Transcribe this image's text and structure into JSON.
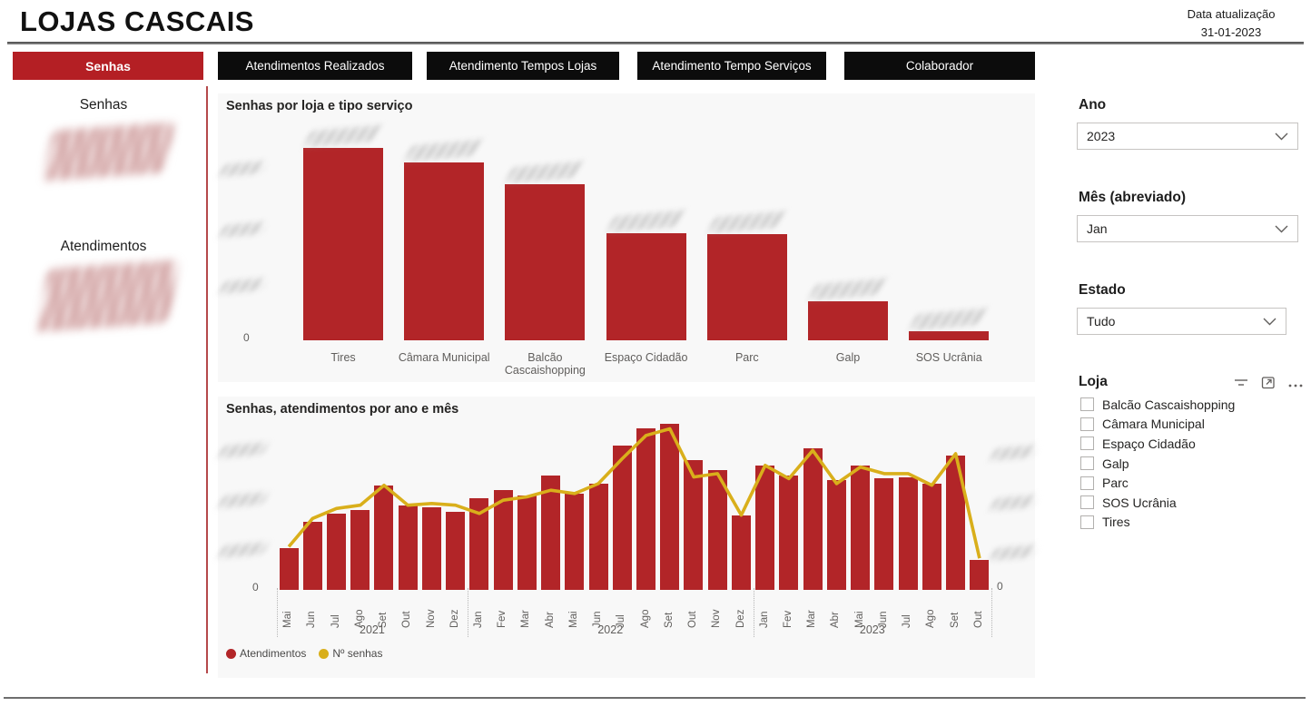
{
  "header": {
    "title": "LOJAS CASCAIS",
    "update_label": "Data atualização",
    "update_date": "31-01-2023"
  },
  "tabs": [
    {
      "label": "Senhas",
      "active": true
    },
    {
      "label": "Atendimentos Realizados",
      "active": false
    },
    {
      "label": "Atendimento Tempos Lojas",
      "active": false
    },
    {
      "label": "Atendimento Tempo Serviços",
      "active": false
    },
    {
      "label": "Colaborador",
      "active": false
    }
  ],
  "sidebar": {
    "kpis": [
      {
        "label": "Senhas",
        "value_blurred": true
      },
      {
        "label": "Atendimentos",
        "value_blurred": true
      }
    ]
  },
  "colors": {
    "bar_red": "#b22528",
    "line_gold": "#d9af1b",
    "tab_red": "#b41f24",
    "tab_black": "#0c0c0c",
    "axis_text": "#605e5c"
  },
  "chart_data": [
    {
      "type": "bar",
      "title": "Senhas por loja e tipo serviço",
      "categories": [
        "Tires",
        "Câmara Municipal",
        "Balcão Cascaishopping",
        "Espaço Cidadão",
        "Parc",
        "Galp",
        "SOS Ucrânia"
      ],
      "values_pct_of_max": [
        100,
        92.5,
        81,
        55.5,
        55,
        20.5,
        4.5
      ],
      "y_zero": "0",
      "y_tick_labels_blurred": true,
      "data_labels_blurred": true,
      "bar_color": "#b22528"
    },
    {
      "type": "bar+line",
      "title": "Senhas, atendimentos por ano e mês",
      "x_months": [
        "Mai",
        "Jun",
        "Jul",
        "Ago",
        "Set",
        "Out",
        "Nov",
        "Dez",
        "Jan",
        "Fev",
        "Mar",
        "Abr",
        "Mai",
        "Jun",
        "Jul",
        "Ago",
        "Set",
        "Out",
        "Nov",
        "Dez",
        "Jan",
        "Fev",
        "Mar",
        "Abr",
        "Mai",
        "Jun",
        "Jul",
        "Ago",
        "Set",
        "Out"
      ],
      "year_groups": [
        {
          "label": "2021",
          "months": 8
        },
        {
          "label": "2022",
          "months": 12
        },
        {
          "label": "2023",
          "months": 10
        }
      ],
      "series": [
        {
          "name": "Atendimentos",
          "type": "bar",
          "color": "#b22528",
          "values_pct_of_max": [
            25,
            41,
            46,
            48,
            63,
            51,
            50,
            47,
            55,
            60,
            57,
            69,
            58,
            64,
            87,
            97,
            100,
            78,
            72,
            45,
            75,
            69,
            85,
            66,
            75,
            67,
            68,
            64,
            81,
            18
          ]
        },
        {
          "name": "Nº senhas",
          "type": "line",
          "color": "#d9af1b",
          "values_pct_of_max": [
            26,
            43,
            49,
            51,
            63,
            51,
            52,
            51,
            46,
            54,
            56,
            60,
            58,
            64,
            79,
            93,
            97,
            68,
            70,
            45,
            75,
            67,
            84,
            64,
            74,
            70,
            70,
            63,
            82,
            19
          ]
        }
      ],
      "y_zero_left": "0",
      "y_zero_right": "0",
      "y_tick_labels_blurred": true,
      "legend_position": "bottom-left"
    }
  ],
  "filters": {
    "ano": {
      "label": "Ano",
      "value": "2023"
    },
    "mes": {
      "label": "Mês (abreviado)",
      "value": "Jan"
    },
    "estado": {
      "label": "Estado",
      "value": "Tudo"
    },
    "loja": {
      "label": "Loja",
      "header_icons": [
        "filter-icon",
        "focus-mode-icon",
        "more-options-icon"
      ],
      "options": [
        "Balcão Cascaishopping",
        "Câmara Municipal",
        "Espaço Cidadão",
        "Galp",
        "Parc",
        "SOS Ucrânia",
        "Tires"
      ],
      "checked": []
    }
  }
}
